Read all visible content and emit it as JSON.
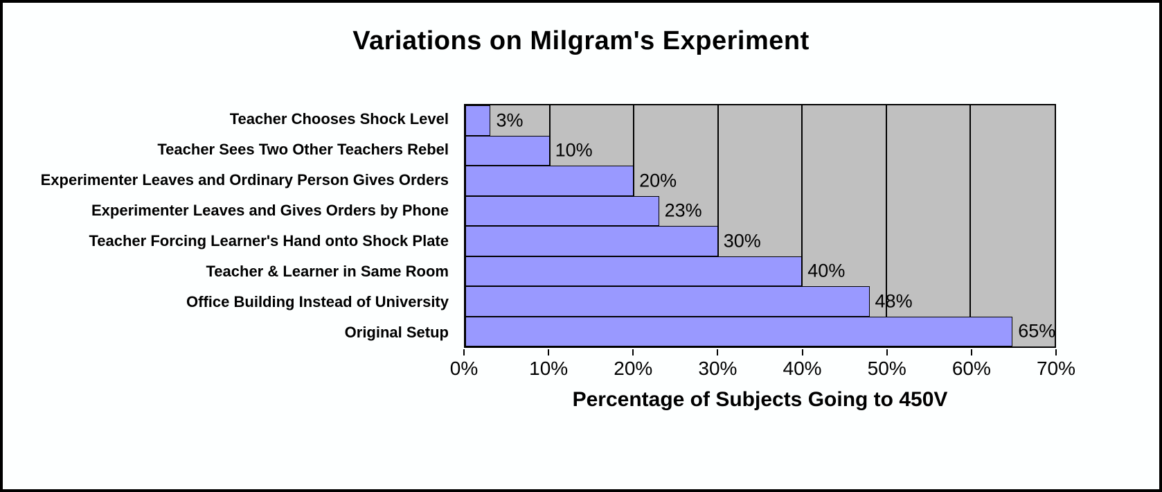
{
  "chart_data": {
    "type": "bar",
    "orientation": "horizontal",
    "title": "Variations on Milgram's Experiment",
    "xlabel": "Percentage of Subjects Going to 450V",
    "categories": [
      "Teacher Chooses Shock Level",
      "Teacher Sees Two Other Teachers Rebel",
      "Experimenter Leaves and Ordinary Person Gives Orders",
      "Experimenter Leaves and Gives Orders by Phone",
      "Teacher Forcing Learner's Hand onto Shock Plate",
      "Teacher & Learner in Same Room",
      "Office Building Instead of University",
      "Original Setup"
    ],
    "values": [
      3,
      10,
      20,
      23,
      30,
      40,
      48,
      65
    ],
    "data_labels": [
      "3%",
      "10%",
      "20%",
      "23%",
      "30%",
      "40%",
      "48%",
      "65%"
    ],
    "xlim": [
      0,
      70
    ],
    "x_ticks": [
      "0%",
      "10%",
      "20%",
      "30%",
      "40%",
      "50%",
      "60%",
      "70%"
    ],
    "grid": "vertical",
    "legend": "none",
    "colors": {
      "bar_fill": "#9999ff",
      "bar_border": "#000000",
      "plot_background": "#c0c0c0",
      "page_background": "#fdffff",
      "gridline": "#000000"
    }
  }
}
